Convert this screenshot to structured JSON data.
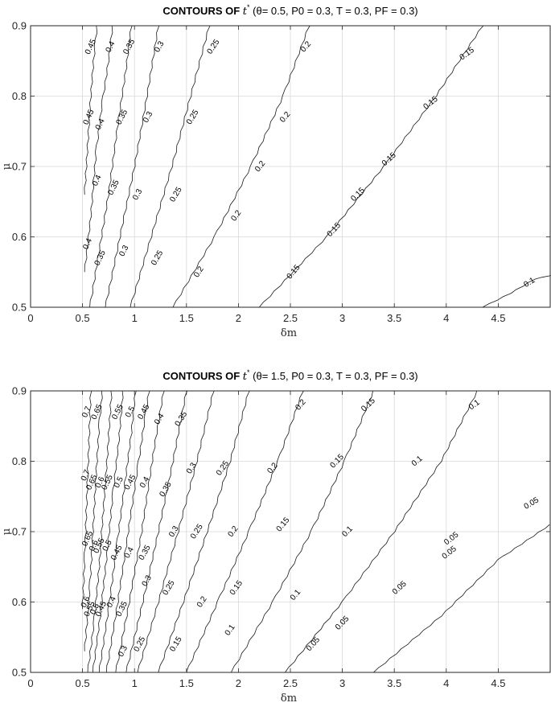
{
  "chart_data": [
    {
      "type": "contour",
      "title": {
        "prefix": "CONTOURS OF  ",
        "variable": "t",
        "variable_superscript": "*",
        "theta_value": "0.5",
        "params_text": "P0 = 0.3, T = 0.3, PF = 0.3"
      },
      "xlabel": "δm",
      "ylabel": "μ",
      "xlim": [
        0,
        5
      ],
      "ylim": [
        0.5,
        0.9
      ],
      "x_ticks": [
        "0",
        "0.5",
        "1",
        "1.5",
        "2",
        "2.5",
        "3",
        "3.5",
        "4",
        "4.5"
      ],
      "y_ticks": [
        "0.5",
        "0.6",
        "0.7",
        "0.8",
        "0.9"
      ],
      "grid": true,
      "contours": [
        {
          "level": "0.45",
          "points": [
            [
              0.52,
              0.66
            ],
            [
              0.57,
              0.78
            ],
            [
              0.6,
              0.84
            ],
            [
              0.62,
              0.87
            ],
            [
              0.64,
              0.9
            ]
          ]
        },
        {
          "level": "0.4",
          "points": [
            [
              0.52,
              0.55
            ],
            [
              0.58,
              0.63
            ],
            [
              0.63,
              0.72
            ],
            [
              0.69,
              0.79
            ],
            [
              0.75,
              0.85
            ],
            [
              0.79,
              0.9
            ]
          ]
        },
        {
          "level": "0.35",
          "points": [
            [
              0.57,
              0.5
            ],
            [
              0.66,
              0.58
            ],
            [
              0.75,
              0.66
            ],
            [
              0.84,
              0.76
            ],
            [
              0.92,
              0.84
            ],
            [
              0.97,
              0.9
            ]
          ]
        },
        {
          "level": "0.3",
          "points": [
            [
              0.72,
              0.5
            ],
            [
              0.86,
              0.6
            ],
            [
              1.0,
              0.7
            ],
            [
              1.12,
              0.8
            ],
            [
              1.23,
              0.9
            ]
          ]
        },
        {
          "level": "0.25",
          "points": [
            [
              0.96,
              0.5
            ],
            [
              1.16,
              0.6
            ],
            [
              1.36,
              0.7
            ],
            [
              1.54,
              0.8
            ],
            [
              1.72,
              0.9
            ]
          ]
        },
        {
          "level": "0.2",
          "points": [
            [
              1.37,
              0.5
            ],
            [
              1.77,
              0.6
            ],
            [
              2.12,
              0.7
            ],
            [
              2.43,
              0.8
            ],
            [
              2.68,
              0.9
            ]
          ]
        },
        {
          "level": "0.15",
          "points": [
            [
              2.2,
              0.5
            ],
            [
              2.85,
              0.6
            ],
            [
              3.4,
              0.7
            ],
            [
              3.9,
              0.8
            ],
            [
              4.35,
              0.9
            ]
          ]
        },
        {
          "level": "0.1",
          "points": [
            [
              4.35,
              0.5
            ],
            [
              4.62,
              0.52
            ],
            [
              4.85,
              0.54
            ],
            [
              5.0,
              0.545
            ]
          ]
        }
      ],
      "labels": [
        {
          "level": "0.45",
          "x": 0.58,
          "y": 0.87
        },
        {
          "level": "0.45",
          "x": 0.56,
          "y": 0.77
        },
        {
          "level": "0.4",
          "x": 0.77,
          "y": 0.87
        },
        {
          "level": "0.4",
          "x": 0.67,
          "y": 0.76
        },
        {
          "level": "0.4",
          "x": 0.64,
          "y": 0.68
        },
        {
          "level": "0.4",
          "x": 0.55,
          "y": 0.59
        },
        {
          "level": "0.35",
          "x": 0.95,
          "y": 0.87
        },
        {
          "level": "0.35",
          "x": 0.88,
          "y": 0.77
        },
        {
          "level": "0.35",
          "x": 0.8,
          "y": 0.67
        },
        {
          "level": "0.35",
          "x": 0.67,
          "y": 0.57
        },
        {
          "level": "0.3",
          "x": 1.24,
          "y": 0.87
        },
        {
          "level": "0.3",
          "x": 1.13,
          "y": 0.77
        },
        {
          "level": "0.3",
          "x": 1.03,
          "y": 0.66
        },
        {
          "level": "0.3",
          "x": 0.9,
          "y": 0.58
        },
        {
          "level": "0.25",
          "x": 1.76,
          "y": 0.87
        },
        {
          "level": "0.25",
          "x": 1.56,
          "y": 0.77
        },
        {
          "level": "0.25",
          "x": 1.4,
          "y": 0.66
        },
        {
          "level": "0.25",
          "x": 1.22,
          "y": 0.57
        },
        {
          "level": "0.2",
          "x": 2.65,
          "y": 0.87
        },
        {
          "level": "0.2",
          "x": 2.45,
          "y": 0.77
        },
        {
          "level": "0.2",
          "x": 2.21,
          "y": 0.7
        },
        {
          "level": "0.2",
          "x": 1.98,
          "y": 0.63
        },
        {
          "level": "0.2",
          "x": 1.62,
          "y": 0.55
        },
        {
          "level": "0.15",
          "x": 4.2,
          "y": 0.86
        },
        {
          "level": "0.15",
          "x": 3.85,
          "y": 0.79
        },
        {
          "level": "0.15",
          "x": 3.45,
          "y": 0.71
        },
        {
          "level": "0.15",
          "x": 3.15,
          "y": 0.66
        },
        {
          "level": "0.15",
          "x": 2.92,
          "y": 0.61
        },
        {
          "level": "0.15",
          "x": 2.53,
          "y": 0.55
        },
        {
          "level": "0.1",
          "x": 4.8,
          "y": 0.535
        }
      ]
    },
    {
      "type": "contour",
      "title": {
        "prefix": "CONTOURS OF  ",
        "variable": "t",
        "variable_superscript": "*",
        "theta_value": "1.5",
        "params_text": "P0 = 0.3, T = 0.3, PF = 0.3"
      },
      "xlabel": "δm",
      "ylabel": "μ",
      "xlim": [
        0,
        5
      ],
      "ylim": [
        0.5,
        0.9
      ],
      "x_ticks": [
        "0",
        "0.5",
        "1",
        "1.5",
        "2",
        "2.5",
        "3",
        "3.5",
        "4",
        "4.5"
      ],
      "y_ticks": [
        "0.5",
        "0.6",
        "0.7",
        "0.8",
        "0.9"
      ],
      "grid": true,
      "contours": [
        {
          "level": "0.7",
          "points": [
            [
              0.5,
              0.59
            ],
            [
              0.52,
              0.66
            ],
            [
              0.54,
              0.74
            ],
            [
              0.56,
              0.82
            ],
            [
              0.58,
              0.9
            ]
          ]
        },
        {
          "level": "0.65",
          "points": [
            [
              0.52,
              0.53
            ],
            [
              0.57,
              0.62
            ],
            [
              0.6,
              0.7
            ],
            [
              0.63,
              0.78
            ],
            [
              0.66,
              0.85
            ],
            [
              0.69,
              0.9
            ]
          ]
        },
        {
          "level": "0.6",
          "points": [
            [
              0.55,
              0.5
            ],
            [
              0.61,
              0.57
            ],
            [
              0.66,
              0.65
            ],
            [
              0.7,
              0.73
            ],
            [
              0.74,
              0.81
            ],
            [
              0.78,
              0.9
            ]
          ]
        },
        {
          "level": "0.55",
          "points": [
            [
              0.6,
              0.5
            ],
            [
              0.67,
              0.58
            ],
            [
              0.73,
              0.66
            ],
            [
              0.79,
              0.75
            ],
            [
              0.85,
              0.83
            ],
            [
              0.89,
              0.9
            ]
          ]
        },
        {
          "level": "0.5",
          "points": [
            [
              0.66,
              0.5
            ],
            [
              0.75,
              0.59
            ],
            [
              0.83,
              0.68
            ],
            [
              0.9,
              0.76
            ],
            [
              0.97,
              0.84
            ],
            [
              1.01,
              0.9
            ]
          ]
        },
        {
          "level": "0.45",
          "points": [
            [
              0.73,
              0.5
            ],
            [
              0.84,
              0.6
            ],
            [
              0.94,
              0.7
            ],
            [
              1.03,
              0.79
            ],
            [
              1.1,
              0.86
            ],
            [
              1.14,
              0.9
            ]
          ]
        },
        {
          "level": "0.4",
          "points": [
            [
              0.82,
              0.5
            ],
            [
              0.95,
              0.6
            ],
            [
              1.07,
              0.7
            ],
            [
              1.17,
              0.8
            ],
            [
              1.28,
              0.9
            ]
          ]
        },
        {
          "level": "0.35",
          "points": [
            [
              0.92,
              0.5
            ],
            [
              1.08,
              0.6
            ],
            [
              1.23,
              0.7
            ],
            [
              1.37,
              0.8
            ],
            [
              1.5,
              0.9
            ]
          ]
        },
        {
          "level": "0.3",
          "points": [
            [
              1.03,
              0.5
            ],
            [
              1.23,
              0.6
            ],
            [
              1.42,
              0.7
            ],
            [
              1.6,
              0.8
            ],
            [
              1.76,
              0.9
            ]
          ]
        },
        {
          "level": "0.25",
          "points": [
            [
              1.23,
              0.5
            ],
            [
              1.47,
              0.6
            ],
            [
              1.7,
              0.7
            ],
            [
              1.92,
              0.8
            ],
            [
              2.1,
              0.9
            ]
          ]
        },
        {
          "level": "0.2",
          "points": [
            [
              1.5,
              0.5
            ],
            [
              1.8,
              0.6
            ],
            [
              2.1,
              0.7
            ],
            [
              2.38,
              0.8
            ],
            [
              2.62,
              0.9
            ]
          ]
        },
        {
          "level": "0.15",
          "points": [
            [
              1.93,
              0.5
            ],
            [
              2.33,
              0.6
            ],
            [
              2.7,
              0.7
            ],
            [
              3.02,
              0.8
            ],
            [
              3.3,
              0.9
            ]
          ]
        },
        {
          "level": "0.1",
          "points": [
            [
              2.45,
              0.5
            ],
            [
              3.0,
              0.6
            ],
            [
              3.5,
              0.7
            ],
            [
              3.95,
              0.8
            ],
            [
              4.3,
              0.9
            ]
          ]
        },
        {
          "level": "0.05",
          "points": [
            [
              3.3,
              0.5
            ],
            [
              3.95,
              0.58
            ],
            [
              4.5,
              0.66
            ],
            [
              5.0,
              0.71
            ]
          ]
        }
      ],
      "labels": [
        {
          "level": "0.7",
          "x": 0.54,
          "y": 0.87
        },
        {
          "level": "0.65",
          "x": 0.64,
          "y": 0.87
        },
        {
          "level": "0.55",
          "x": 0.84,
          "y": 0.87
        },
        {
          "level": "0.5",
          "x": 0.96,
          "y": 0.87
        },
        {
          "level": "0.45",
          "x": 1.09,
          "y": 0.87
        },
        {
          "level": "0.4",
          "x": 1.24,
          "y": 0.86
        },
        {
          "level": "0.35",
          "x": 1.45,
          "y": 0.86
        },
        {
          "level": "0.7",
          "x": 0.53,
          "y": 0.78
        },
        {
          "level": "0.65",
          "x": 0.59,
          "y": 0.77
        },
        {
          "level": "0.6",
          "x": 0.67,
          "y": 0.77
        },
        {
          "level": "0.55",
          "x": 0.74,
          "y": 0.77
        },
        {
          "level": "0.5",
          "x": 0.85,
          "y": 0.77
        },
        {
          "level": "0.45",
          "x": 0.96,
          "y": 0.77
        },
        {
          "level": "0.4",
          "x": 1.1,
          "y": 0.77
        },
        {
          "level": "0.35",
          "x": 1.3,
          "y": 0.76
        },
        {
          "level": "0.3",
          "x": 1.55,
          "y": 0.79
        },
        {
          "level": "0.25",
          "x": 1.85,
          "y": 0.79
        },
        {
          "level": "0.2",
          "x": 2.33,
          "y": 0.79
        },
        {
          "level": "0.15",
          "x": 2.95,
          "y": 0.8
        },
        {
          "level": "0.1",
          "x": 3.72,
          "y": 0.8
        },
        {
          "level": "0.2",
          "x": 2.6,
          "y": 0.88
        },
        {
          "level": "0.15",
          "x": 3.25,
          "y": 0.88
        },
        {
          "level": "0.1",
          "x": 4.27,
          "y": 0.88
        },
        {
          "level": "0.65",
          "x": 0.55,
          "y": 0.69
        },
        {
          "level": "0.6",
          "x": 0.61,
          "y": 0.68
        },
        {
          "level": "0.55",
          "x": 0.66,
          "y": 0.68
        },
        {
          "level": "0.5",
          "x": 0.74,
          "y": 0.68
        },
        {
          "level": "0.45",
          "x": 0.83,
          "y": 0.67
        },
        {
          "level": "0.4",
          "x": 0.95,
          "y": 0.67
        },
        {
          "level": "0.35",
          "x": 1.1,
          "y": 0.67
        },
        {
          "level": "0.3",
          "x": 1.38,
          "y": 0.7
        },
        {
          "level": "0.25",
          "x": 1.6,
          "y": 0.7
        },
        {
          "level": "0.2",
          "x": 1.95,
          "y": 0.7
        },
        {
          "level": "0.15",
          "x": 2.43,
          "y": 0.71
        },
        {
          "level": "0.1",
          "x": 3.05,
          "y": 0.7
        },
        {
          "level": "0.05",
          "x": 4.05,
          "y": 0.69
        },
        {
          "level": "0.05",
          "x": 4.82,
          "y": 0.74
        },
        {
          "level": "0.6",
          "x": 0.53,
          "y": 0.6
        },
        {
          "level": "0.55",
          "x": 0.57,
          "y": 0.59
        },
        {
          "level": "0.5",
          "x": 0.62,
          "y": 0.59
        },
        {
          "level": "0.45",
          "x": 0.68,
          "y": 0.59
        },
        {
          "level": "0.4",
          "x": 0.78,
          "y": 0.6
        },
        {
          "level": "0.35",
          "x": 0.88,
          "y": 0.59
        },
        {
          "level": "0.3",
          "x": 1.12,
          "y": 0.63
        },
        {
          "level": "0.25",
          "x": 1.33,
          "y": 0.62
        },
        {
          "level": "0.2",
          "x": 1.65,
          "y": 0.6
        },
        {
          "level": "0.15",
          "x": 1.98,
          "y": 0.62
        },
        {
          "level": "0.1",
          "x": 2.55,
          "y": 0.61
        },
        {
          "level": "0.05",
          "x": 3.55,
          "y": 0.62
        },
        {
          "level": "0.05",
          "x": 4.03,
          "y": 0.67
        },
        {
          "level": "0.3",
          "x": 0.89,
          "y": 0.53
        },
        {
          "level": "0.25",
          "x": 1.05,
          "y": 0.54
        },
        {
          "level": "0.15",
          "x": 1.4,
          "y": 0.54
        },
        {
          "level": "0.1",
          "x": 1.92,
          "y": 0.56
        },
        {
          "level": "0.05",
          "x": 2.72,
          "y": 0.54
        },
        {
          "level": "0.05",
          "x": 3.0,
          "y": 0.57
        }
      ]
    }
  ]
}
